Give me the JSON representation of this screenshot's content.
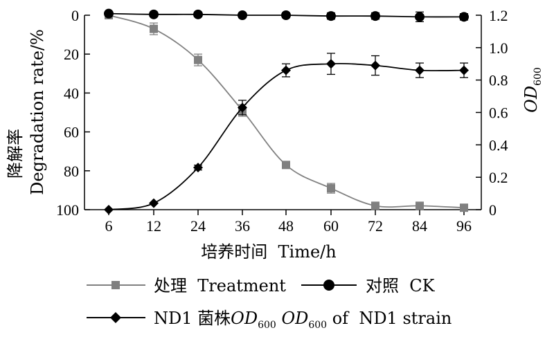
{
  "chart_data": {
    "type": "line",
    "x": [
      6,
      12,
      24,
      36,
      48,
      60,
      72,
      84,
      96
    ],
    "xlabel": "培养时间  Time/h",
    "ylabel_left_cn": "降解率",
    "ylabel_left_en": "Degradation rate/%",
    "ylabel_right_main": "OD",
    "ylabel_right_sub": "600",
    "ylim_left": [
      100,
      0
    ],
    "ylim_right": [
      0,
      1.2
    ],
    "left_ticks": [
      "0",
      "20",
      "40",
      "60",
      "80",
      "100"
    ],
    "right_ticks": [
      "0",
      "0.2",
      "0.4",
      "0.6",
      "0.8",
      "1.0",
      "1.2"
    ],
    "x_ticks": [
      "6",
      "12",
      "24",
      "36",
      "48",
      "60",
      "72",
      "84",
      "96"
    ],
    "series": [
      {
        "name": "处理  Treatment",
        "axis": "left",
        "marker": "square",
        "color": "#808080",
        "values": [
          0,
          7,
          23,
          49,
          77,
          89,
          98,
          98,
          99
        ],
        "errors": [
          0,
          3,
          3,
          3,
          1.5,
          2.5,
          1.5,
          1.5,
          1
        ]
      },
      {
        "name": "对照  CK",
        "axis": "right",
        "marker": "circle",
        "color": "#000000",
        "values": [
          1.21,
          1.205,
          1.205,
          1.2,
          1.2,
          1.195,
          1.195,
          1.19,
          1.19
        ],
        "errors": [
          0,
          0.015,
          0.015,
          0.015,
          0.015,
          0.02,
          0.02,
          0.03,
          0.02
        ]
      },
      {
        "name": "ND1 菌株OD600  OD600 of ND1 strain",
        "axis": "right",
        "marker": "diamond",
        "color": "#000000",
        "values": [
          0,
          0.04,
          0.26,
          0.63,
          0.86,
          0.9,
          0.89,
          0.86,
          0.86
        ],
        "errors": [
          0,
          0,
          0.015,
          0.045,
          0.04,
          0.065,
          0.06,
          0.045,
          0.045
        ]
      }
    ],
    "legend": {
      "placement": "bottom",
      "treatment": "处理  Treatment",
      "ck": "对照  CK",
      "nd1_prefix": "ND1 菌株",
      "nd1_od1": "OD",
      "nd1_sub1": "600",
      "nd1_od2": "OD",
      "nd1_sub2": "600",
      "nd1_suffix": " of  ND1 strain"
    }
  }
}
